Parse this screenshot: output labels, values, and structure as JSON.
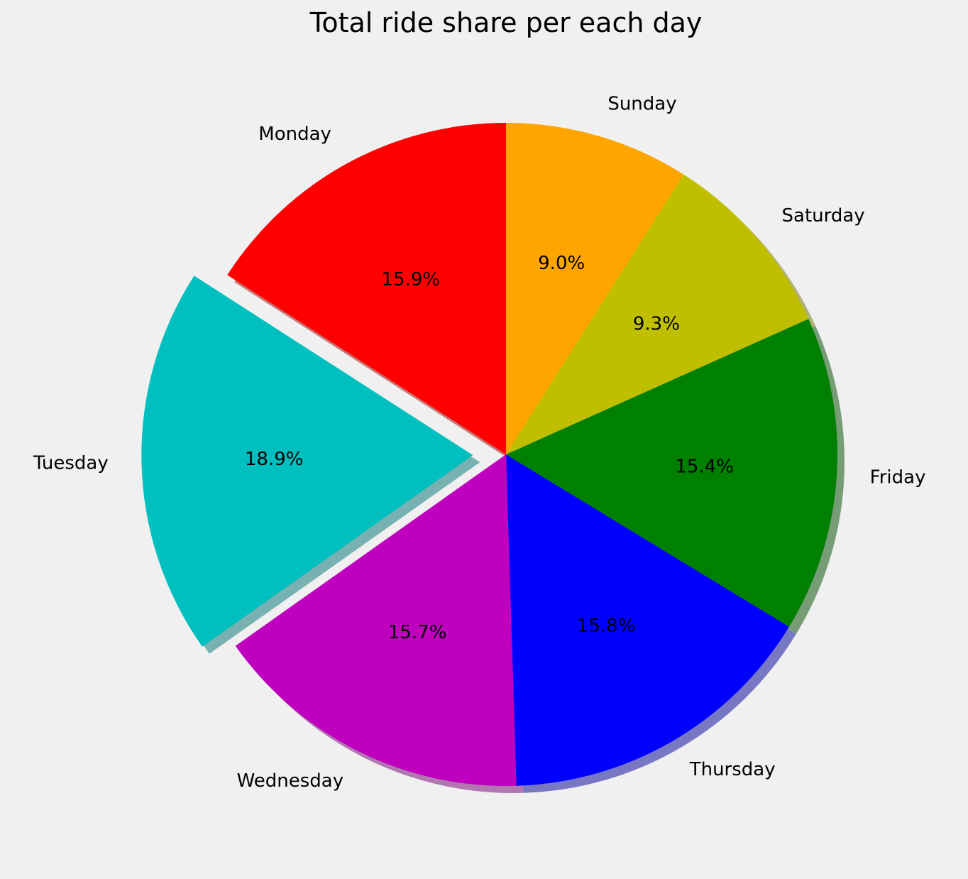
{
  "chart_data": {
    "type": "pie",
    "title": "Total ride share per each day",
    "categories": [
      "Monday",
      "Tuesday",
      "Wednesday",
      "Thursday",
      "Friday",
      "Saturday",
      "Sunday"
    ],
    "values": [
      15.9,
      18.9,
      15.7,
      15.8,
      15.4,
      9.3,
      9.0
    ],
    "value_labels": [
      "15.9%",
      "18.9%",
      "15.7%",
      "15.8%",
      "15.4%",
      "9.3%",
      "9.0%"
    ],
    "colors": [
      "#ff0000",
      "#00bfbf",
      "#bf00bf",
      "#0000ff",
      "#008000",
      "#bfbf00",
      "#ffa500"
    ],
    "exploded": "Tuesday",
    "shadow": true,
    "start_angle_deg": 90,
    "direction": "counterclockwise",
    "legend": "none"
  }
}
